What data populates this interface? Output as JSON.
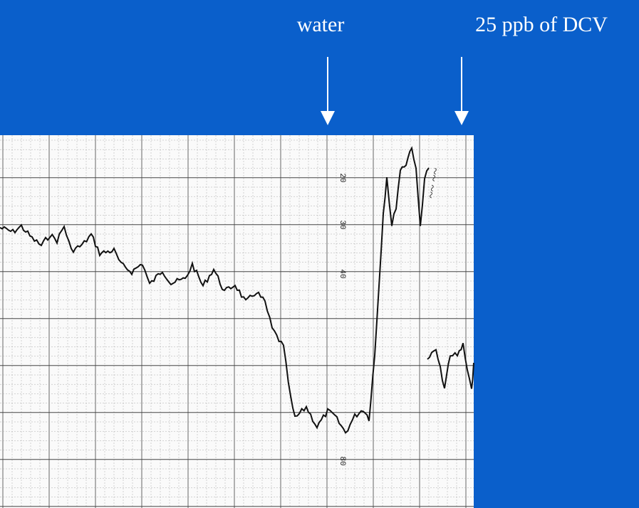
{
  "annotations": {
    "left": "water",
    "right": "25 ppb of DCV"
  },
  "scan_labels": [
    "20",
    "30",
    "40",
    "80"
  ]
}
